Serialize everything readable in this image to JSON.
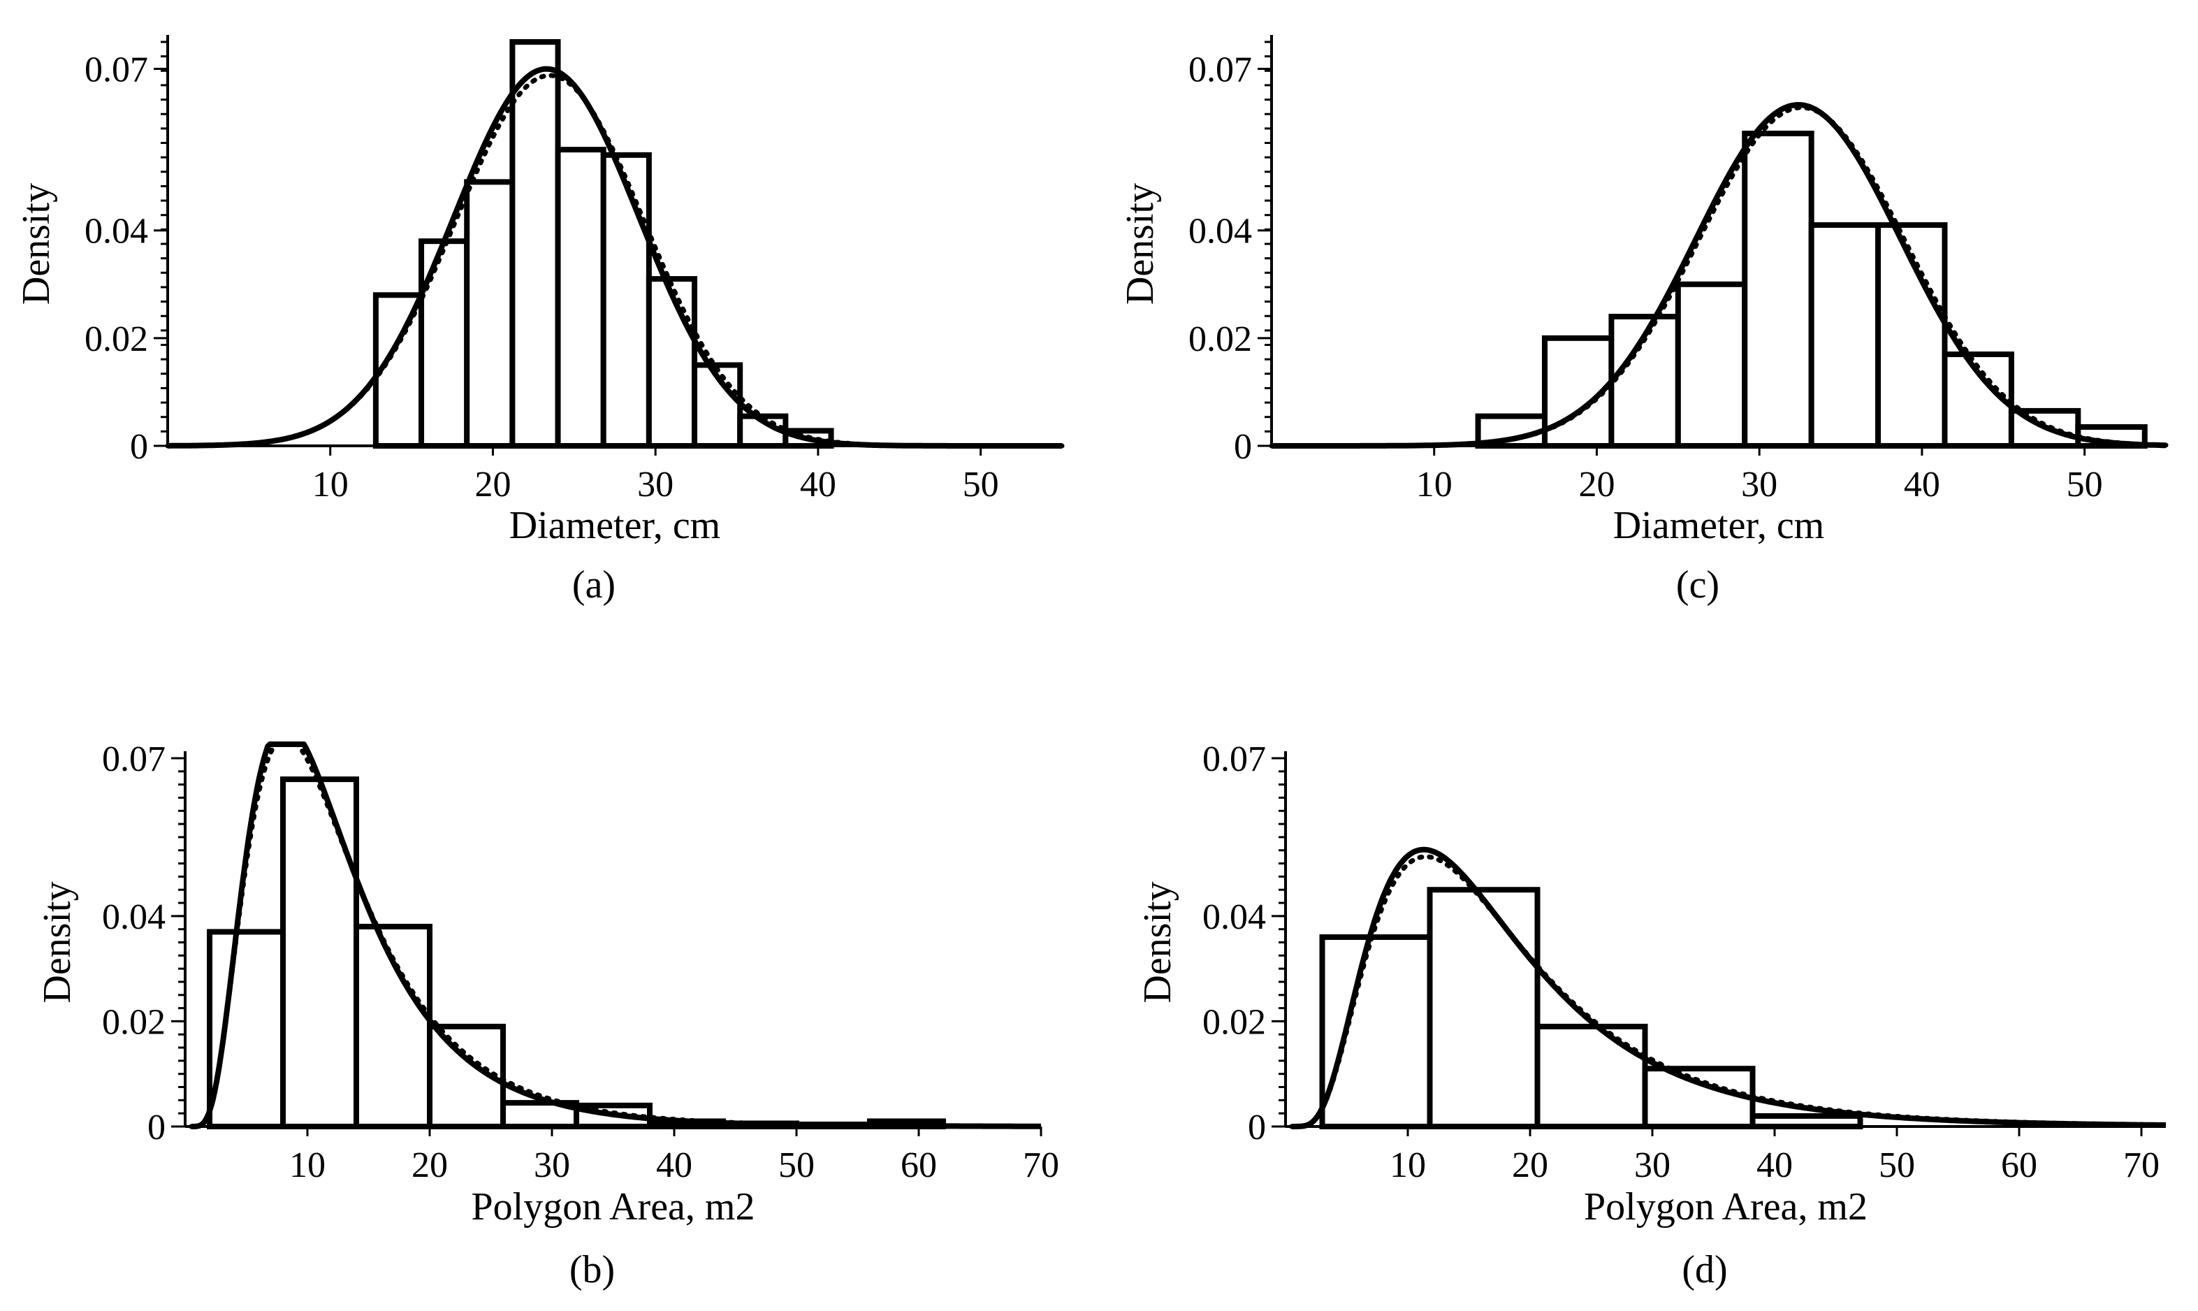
{
  "chart_data": [
    {
      "id": "a",
      "type": "histogram",
      "panel_label": "(a)",
      "xlabel": "Diameter, cm",
      "ylabel": "Density",
      "xlim": [
        0,
        55
      ],
      "ylim": [
        0,
        0.075
      ],
      "x_ticks": [
        10,
        20,
        30,
        40,
        50
      ],
      "y_ticks": [
        0,
        0.02,
        0.04,
        0.07
      ],
      "y_tick_labels": [
        "0",
        "0.02",
        "0.04",
        "0.07"
      ],
      "bins": [
        {
          "x0": 12.8,
          "x1": 15.6,
          "value": 0.028
        },
        {
          "x0": 15.6,
          "x1": 18.4,
          "value": 0.038
        },
        {
          "x0": 18.4,
          "x1": 21.2,
          "value": 0.049
        },
        {
          "x0": 21.2,
          "x1": 24.0,
          "value": 0.075
        },
        {
          "x0": 24.0,
          "x1": 26.8,
          "value": 0.055
        },
        {
          "x0": 26.8,
          "x1": 29.6,
          "value": 0.054
        },
        {
          "x0": 29.6,
          "x1": 32.4,
          "value": 0.031
        },
        {
          "x0": 32.4,
          "x1": 35.2,
          "value": 0.015
        },
        {
          "x0": 35.2,
          "x1": 38.0,
          "value": 0.0055
        },
        {
          "x0": 38.0,
          "x1": 40.8,
          "value": 0.0028
        }
      ],
      "fit_curves": [
        {
          "name": "fit-solid",
          "style": "solid",
          "dist": "normal",
          "mean": 23.3,
          "sd": 5.7
        },
        {
          "name": "fit-dotted",
          "style": "dotted",
          "dist": "normal",
          "mean": 23.5,
          "sd": 5.8
        }
      ]
    },
    {
      "id": "c",
      "type": "histogram",
      "panel_label": "(c)",
      "xlabel": "Diameter, cm",
      "ylabel": "Density",
      "xlim": [
        0,
        55
      ],
      "ylim": [
        0,
        0.075
      ],
      "x_ticks": [
        10,
        20,
        30,
        40,
        50
      ],
      "y_ticks": [
        0,
        0.02,
        0.04,
        0.07
      ],
      "y_tick_labels": [
        "0",
        "0.02",
        "0.04",
        "0.07"
      ],
      "bins": [
        {
          "x0": 12.7,
          "x1": 16.8,
          "value": 0.0055
        },
        {
          "x0": 16.8,
          "x1": 20.9,
          "value": 0.02
        },
        {
          "x0": 20.9,
          "x1": 25.0,
          "value": 0.024
        },
        {
          "x0": 25.0,
          "x1": 29.1,
          "value": 0.03
        },
        {
          "x0": 29.1,
          "x1": 33.2,
          "value": 0.058
        },
        {
          "x0": 33.2,
          "x1": 37.3,
          "value": 0.041
        },
        {
          "x0": 37.3,
          "x1": 41.4,
          "value": 0.041
        },
        {
          "x0": 41.4,
          "x1": 45.5,
          "value": 0.017
        },
        {
          "x0": 45.5,
          "x1": 49.6,
          "value": 0.0065
        },
        {
          "x0": 49.6,
          "x1": 53.7,
          "value": 0.0035
        }
      ],
      "fit_curves": [
        {
          "name": "fit-solid",
          "style": "solid",
          "dist": "normal",
          "mean": 32.4,
          "sd": 6.3
        },
        {
          "name": "fit-dotted",
          "style": "dotted",
          "dist": "normal",
          "mean": 32.6,
          "sd": 6.35
        }
      ]
    },
    {
      "id": "b",
      "type": "histogram",
      "panel_label": "(b)",
      "xlabel": "Polygon Area, m2",
      "ylabel": "Density",
      "xlim": [
        0,
        70
      ],
      "ylim": [
        0,
        0.07
      ],
      "x_ticks": [
        10,
        20,
        30,
        40,
        50,
        60,
        70
      ],
      "y_ticks": [
        0,
        0.02,
        0.04,
        0.07
      ],
      "y_tick_labels": [
        "0",
        "0.02",
        "0.04",
        "0.07"
      ],
      "bins": [
        {
          "x0": 2.0,
          "x1": 8.0,
          "value": 0.037
        },
        {
          "x0": 8.0,
          "x1": 14.0,
          "value": 0.066
        },
        {
          "x0": 14.0,
          "x1": 20.0,
          "value": 0.038
        },
        {
          "x0": 20.0,
          "x1": 26.0,
          "value": 0.019
        },
        {
          "x0": 26.0,
          "x1": 32.0,
          "value": 0.0045
        },
        {
          "x0": 32.0,
          "x1": 38.0,
          "value": 0.004
        },
        {
          "x0": 38.0,
          "x1": 44.0,
          "value": 0.001
        },
        {
          "x0": 44.0,
          "x1": 50.0,
          "value": 0.0006
        },
        {
          "x0": 50.0,
          "x1": 56.0,
          "value": 0.0004
        },
        {
          "x0": 56.0,
          "x1": 62.0,
          "value": 0.001
        }
      ],
      "fit_curves": [
        {
          "name": "fit-solid",
          "style": "solid",
          "dist": "lognormal",
          "mu": 2.4,
          "sigma": 0.55
        },
        {
          "name": "fit-dotted",
          "style": "dotted",
          "dist": "lognormal",
          "mu": 2.42,
          "sigma": 0.56
        }
      ]
    },
    {
      "id": "d",
      "type": "histogram",
      "panel_label": "(d)",
      "xlabel": "Polygon Area, m2",
      "ylabel": "Density",
      "xlim": [
        0,
        72
      ],
      "ylim": [
        0,
        0.07
      ],
      "x_ticks": [
        10,
        20,
        30,
        40,
        50,
        60,
        70
      ],
      "y_ticks": [
        0,
        0.02,
        0.04,
        0.07
      ],
      "y_tick_labels": [
        "0",
        "0.02",
        "0.04",
        "0.07"
      ],
      "bins": [
        {
          "x0": 3.0,
          "x1": 11.8,
          "value": 0.036
        },
        {
          "x0": 11.8,
          "x1": 20.6,
          "value": 0.045
        },
        {
          "x0": 20.6,
          "x1": 29.4,
          "value": 0.019
        },
        {
          "x0": 29.4,
          "x1": 38.2,
          "value": 0.011
        },
        {
          "x0": 38.2,
          "x1": 47.0,
          "value": 0.002
        }
      ],
      "fit_curves": [
        {
          "name": "fit-solid",
          "style": "solid",
          "dist": "lognormal",
          "mu": 2.75,
          "sigma": 0.57
        },
        {
          "name": "fit-dotted",
          "style": "dotted",
          "dist": "lognormal",
          "mu": 2.77,
          "sigma": 0.575
        }
      ]
    }
  ]
}
